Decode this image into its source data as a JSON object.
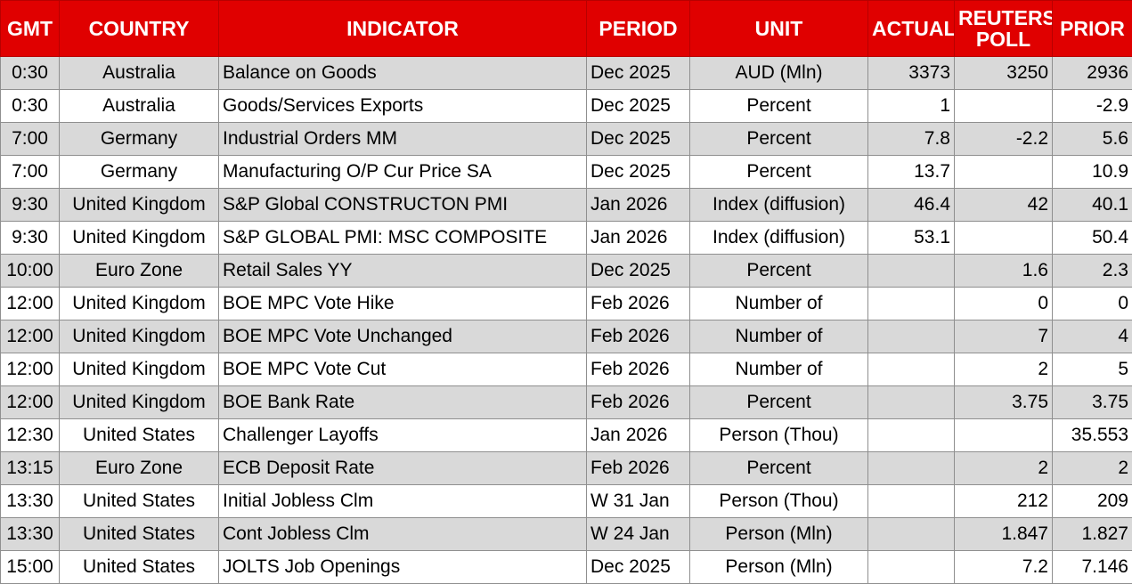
{
  "headers": {
    "gmt": "GMT",
    "country": "COUNTRY",
    "indicator": "INDICATOR",
    "period": "PERIOD",
    "unit": "UNIT",
    "actual": "ACTUAL",
    "reuters_line1": "REUTERS",
    "reuters_line2": "POLL",
    "prior": "PRIOR"
  },
  "rows": [
    {
      "gmt": "0:30",
      "country": "Australia",
      "indicator": "Balance on Goods",
      "period": "Dec 2025",
      "unit": "AUD (Mln)",
      "actual": "3373",
      "poll": "3250",
      "prior": "2936"
    },
    {
      "gmt": "0:30",
      "country": "Australia",
      "indicator": "Goods/Services Exports",
      "period": "Dec 2025",
      "unit": "Percent",
      "actual": "1",
      "poll": "",
      "prior": "-2.9"
    },
    {
      "gmt": "7:00",
      "country": "Germany",
      "indicator": "Industrial Orders MM",
      "period": "Dec 2025",
      "unit": "Percent",
      "actual": "7.8",
      "poll": "-2.2",
      "prior": "5.6"
    },
    {
      "gmt": "7:00",
      "country": "Germany",
      "indicator": "Manufacturing O/P Cur Price SA",
      "period": "Dec 2025",
      "unit": "Percent",
      "actual": "13.7",
      "poll": "",
      "prior": "10.9"
    },
    {
      "gmt": "9:30",
      "country": "United Kingdom",
      "indicator": "S&P Global CONSTRUCTON PMI",
      "period": "Jan 2026",
      "unit": "Index (diffusion)",
      "actual": "46.4",
      "poll": "42",
      "prior": "40.1"
    },
    {
      "gmt": "9:30",
      "country": "United Kingdom",
      "indicator": "S&P GLOBAL PMI: MSC COMPOSITE",
      "period": "Jan 2026",
      "unit": "Index (diffusion)",
      "actual": "53.1",
      "poll": "",
      "prior": "50.4"
    },
    {
      "gmt": "10:00",
      "country": "Euro Zone",
      "indicator": "Retail Sales YY",
      "period": "Dec 2025",
      "unit": "Percent",
      "actual": "",
      "poll": "1.6",
      "prior": "2.3"
    },
    {
      "gmt": "12:00",
      "country": "United Kingdom",
      "indicator": "BOE MPC Vote Hike",
      "period": "Feb 2026",
      "unit": "Number of",
      "actual": "",
      "poll": "0",
      "prior": "0"
    },
    {
      "gmt": "12:00",
      "country": "United Kingdom",
      "indicator": "BOE MPC Vote Unchanged",
      "period": "Feb 2026",
      "unit": "Number of",
      "actual": "",
      "poll": "7",
      "prior": "4"
    },
    {
      "gmt": "12:00",
      "country": "United Kingdom",
      "indicator": "BOE MPC Vote Cut",
      "period": "Feb 2026",
      "unit": "Number of",
      "actual": "",
      "poll": "2",
      "prior": "5"
    },
    {
      "gmt": "12:00",
      "country": "United Kingdom",
      "indicator": "BOE Bank Rate",
      "period": "Feb 2026",
      "unit": "Percent",
      "actual": "",
      "poll": "3.75",
      "prior": "3.75"
    },
    {
      "gmt": "12:30",
      "country": "United States",
      "indicator": "Challenger Layoffs",
      "period": "Jan 2026",
      "unit": "Person (Thou)",
      "actual": "",
      "poll": "",
      "prior": "35.553"
    },
    {
      "gmt": "13:15",
      "country": "Euro Zone",
      "indicator": "ECB Deposit Rate",
      "period": "Feb 2026",
      "unit": "Percent",
      "actual": "",
      "poll": "2",
      "prior": "2"
    },
    {
      "gmt": "13:30",
      "country": "United States",
      "indicator": "Initial Jobless Clm",
      "period": "W 31 Jan",
      "unit": "Person (Thou)",
      "actual": "",
      "poll": "212",
      "prior": "209"
    },
    {
      "gmt": "13:30",
      "country": "United States",
      "indicator": "Cont Jobless Clm",
      "period": "W 24 Jan",
      "unit": "Person (Mln)",
      "actual": "",
      "poll": "1.847",
      "prior": "1.827"
    },
    {
      "gmt": "15:00",
      "country": "United States",
      "indicator": "JOLTS Job Openings",
      "period": "Dec 2025",
      "unit": "Person (Mln)",
      "actual": "",
      "poll": "7.2",
      "prior": "7.146"
    }
  ]
}
